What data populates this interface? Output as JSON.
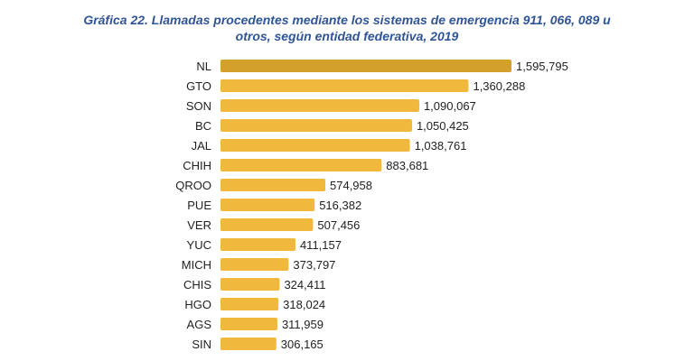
{
  "chart_data": {
    "type": "bar",
    "orientation": "horizontal",
    "title_line1": "Gráfica 22. Llamadas procedentes mediante los sistemas de emergencia 911, 066, 089 u",
    "title_line2": "otros, según entidad federativa, 2019",
    "categories": [
      "NL",
      "GTO",
      "SON",
      "BC",
      "JAL",
      "CHIH",
      "QROO",
      "PUE",
      "VER",
      "YUC",
      "MICH",
      "CHIS",
      "HGO",
      "AGS",
      "SIN"
    ],
    "values": [
      1595795,
      1360288,
      1090067,
      1050425,
      1038761,
      883681,
      574958,
      516382,
      507456,
      411157,
      373797,
      324411,
      318024,
      311959,
      306165
    ],
    "value_labels": [
      "1,595,795",
      "1,360,288",
      "1,090,067",
      "1,050,425",
      "1,038,761",
      "883,681",
      "574,958",
      "516,382",
      "507,456",
      "411,157",
      "373,797",
      "324,411",
      "318,024",
      "311,959",
      "306,165"
    ],
    "highlight_color": "#d4a02c",
    "bar_color": "#f0b83c",
    "grid": false,
    "legend": "none"
  }
}
